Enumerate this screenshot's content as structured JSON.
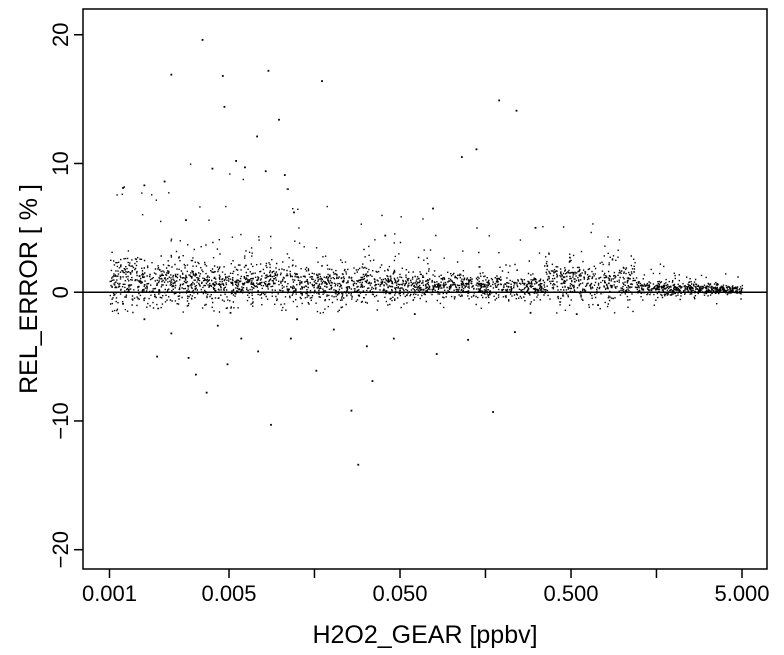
{
  "chart_data": {
    "type": "scatter",
    "title": "",
    "xlabel": "H2O2_GEAR [ppbv]",
    "ylabel": "REL_ERROR [ % ]",
    "x_scale": "log",
    "xlim": [
      0.0007,
      7.0
    ],
    "ylim": [
      -21.5,
      22
    ],
    "grid": false,
    "legend": "none",
    "x_ticks": [
      {
        "value": 0.001,
        "label": "0.001"
      },
      {
        "value": 0.005,
        "label": "0.005"
      },
      {
        "value": 0.05,
        "label": "0.050"
      },
      {
        "value": 0.5,
        "label": "0.500"
      },
      {
        "value": 5.0,
        "label": "5.000"
      }
    ],
    "x_minor_ticks": [
      0.0158,
      0.158,
      1.58
    ],
    "y_ticks": [
      {
        "value": -20,
        "label": "−20"
      },
      {
        "value": -10,
        "label": "−10"
      },
      {
        "value": 0,
        "label": "0"
      },
      {
        "value": 10,
        "label": "10"
      },
      {
        "value": 20,
        "label": "20"
      }
    ],
    "reference_line": {
      "y": 0
    },
    "point_color": "#000000",
    "series": [
      {
        "points": [
          [
            0.0035,
            19.6
          ],
          [
            0.0046,
            16.8
          ],
          [
            0.0023,
            16.9
          ],
          [
            0.0085,
            17.2
          ],
          [
            0.0175,
            16.4
          ],
          [
            0.0047,
            14.4
          ],
          [
            0.0098,
            13.4
          ],
          [
            0.19,
            14.9
          ],
          [
            0.24,
            14.1
          ],
          [
            0.0073,
            12.1
          ],
          [
            0.14,
            11.1
          ],
          [
            0.0055,
            10.2
          ],
          [
            0.004,
            9.6
          ],
          [
            0.0062,
            9.7
          ],
          [
            0.0082,
            9.4
          ],
          [
            0.0016,
            8.3
          ],
          [
            0.0012,
            8.1
          ],
          [
            0.0021,
            8.6
          ],
          [
            0.0106,
            9.1
          ],
          [
            0.078,
            6.5
          ],
          [
            0.115,
            10.5
          ],
          [
            0.31,
            5.0
          ],
          [
            0.041,
            4.4
          ],
          [
            0.0028,
            5.6
          ],
          [
            0.012,
            6.2
          ],
          [
            0.0012,
            -0.9
          ],
          [
            0.0016,
            -2.1
          ],
          [
            0.0019,
            -5.0
          ],
          [
            0.0023,
            -3.2
          ],
          [
            0.0029,
            -5.1
          ],
          [
            0.0032,
            -6.4
          ],
          [
            0.0043,
            -2.6
          ],
          [
            0.0049,
            -5.6
          ],
          [
            0.0059,
            -3.6
          ],
          [
            0.0074,
            -4.6
          ],
          [
            0.0088,
            -10.3
          ],
          [
            0.0115,
            -3.6
          ],
          [
            0.0162,
            -6.1
          ],
          [
            0.0205,
            -2.9
          ],
          [
            0.026,
            -9.2
          ],
          [
            0.0285,
            -13.4
          ],
          [
            0.0345,
            -6.9
          ],
          [
            0.046,
            -3.6
          ],
          [
            0.082,
            -4.8
          ],
          [
            0.125,
            -3.7
          ],
          [
            0.175,
            -9.3
          ],
          [
            0.235,
            -3.1
          ],
          [
            0.29,
            -1.6
          ],
          [
            0.54,
            -1.7
          ],
          [
            0.72,
            -1.0
          ],
          [
            0.0125,
            -2.1
          ],
          [
            0.032,
            -4.2
          ],
          [
            0.061,
            -1.7
          ],
          [
            0.0037,
            -7.8
          ],
          [
            0.0051,
            -1.6
          ]
        ]
      }
    ]
  }
}
